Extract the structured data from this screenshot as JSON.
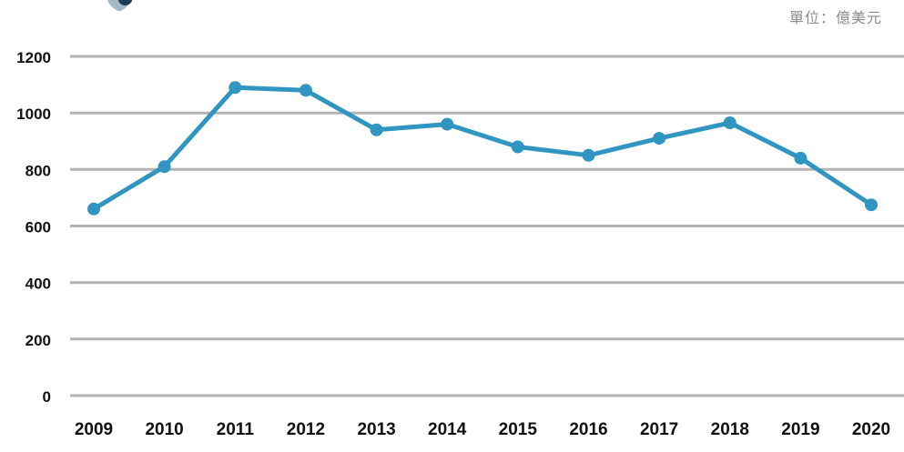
{
  "page": {
    "background_color": "#ffffff",
    "unit_label": "單位：億美元",
    "unit_label_color": "#8a8a8a",
    "logo": {
      "description": "partial logo mark cut off at top edge",
      "light_color": "#a3b8c6",
      "dark_color": "#1e3a57"
    }
  },
  "chart_data": {
    "type": "line",
    "title": "",
    "xlabel": "",
    "ylabel": "單位：億美元",
    "categories": [
      "2009",
      "2010",
      "2011",
      "2012",
      "2013",
      "2014",
      "2015",
      "2016",
      "2017",
      "2018",
      "2019",
      "2020"
    ],
    "values": [
      660,
      810,
      1090,
      1080,
      940,
      960,
      880,
      850,
      910,
      965,
      840,
      675
    ],
    "series_name": "",
    "ylim": [
      0,
      1200
    ],
    "yticks": [
      0,
      200,
      400,
      600,
      800,
      1000,
      1200
    ],
    "grid": true,
    "legend_position": "none",
    "line_color": "#3095c1",
    "marker_color": "#3095c1",
    "gridline_color": "#b3b3b3",
    "axis_label_color": "#111111"
  }
}
